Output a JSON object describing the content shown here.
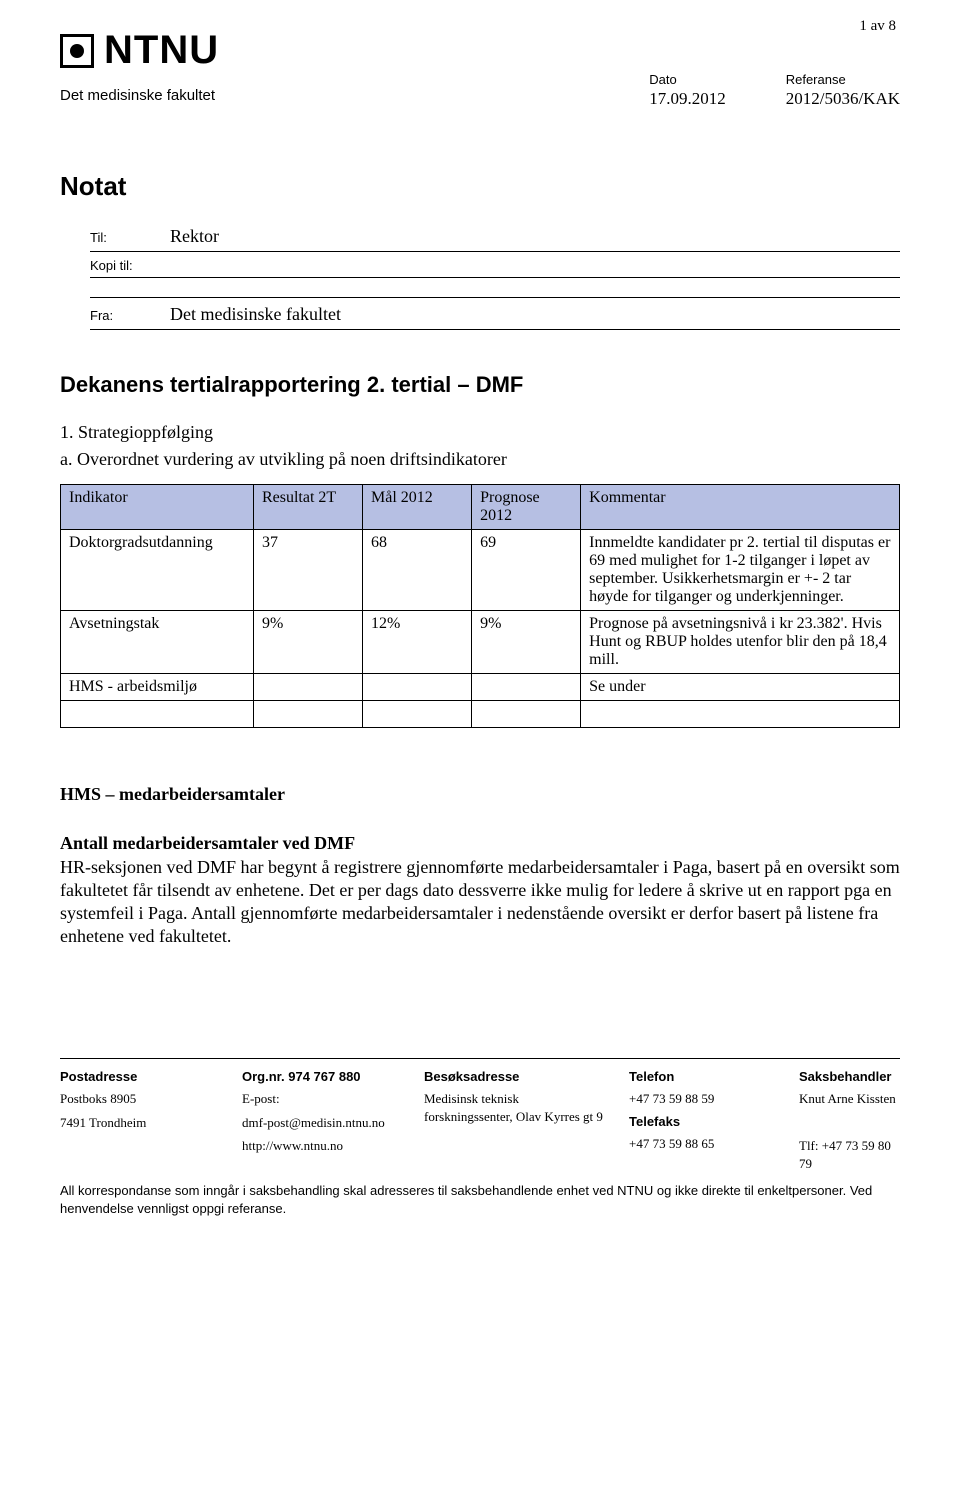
{
  "page_number": "1 av 8",
  "logo_text": "NTNU",
  "faculty": "Det medisinske fakultet",
  "date_block": {
    "label": "Dato",
    "value": "17.09.2012"
  },
  "ref_block": {
    "label": "Referanse",
    "value": "2012/5036/KAK"
  },
  "notat": "Notat",
  "meta": {
    "til_label": "Til:",
    "til_value": "Rektor",
    "kopi_label": "Kopi til:",
    "fra_label": "Fra:",
    "fra_value": "Det medisinske fakultet"
  },
  "doc_title": "Dekanens tertialrapportering 2. tertial – DMF",
  "section1_num": "1. Strategioppfølging",
  "section1_sub": "a. Overordnet vurdering av utvikling på noen driftsindikatorer",
  "table": {
    "header_bg": "#b6bfe3",
    "columns": [
      "Indikator",
      "Resultat 2T",
      "Mål 2012",
      "Prognose 2012",
      "Kommentar"
    ],
    "col_widths": [
      "23%",
      "13%",
      "13%",
      "13%",
      "38%"
    ],
    "rows": [
      {
        "cells": [
          "Doktorgradsutdanning",
          "37",
          "68",
          "69",
          "Innmeldte kandidater pr 2. tertial til disputas er 69 med mulighet for 1-2 tilganger i løpet av september. Usikkerhetsmargin er +- 2 tar høyde for tilganger og underkjenninger."
        ]
      },
      {
        "cells": [
          "Avsetningstak",
          "9%",
          "12%",
          "9%",
          "Prognose på avsetningsnivå i kr 23.382'. Hvis Hunt og RBUP holdes utenfor blir den på 18,4 mill."
        ]
      },
      {
        "cells": [
          "HMS - arbeidsmiljø",
          "",
          "",
          "",
          "Se under"
        ]
      },
      {
        "cells": [
          "",
          "",
          "",
          "",
          ""
        ]
      }
    ]
  },
  "hms_heading": "HMS – medarbeidersamtaler",
  "antall_heading": "Antall medarbeidersamtaler ved DMF",
  "antall_body": "HR-seksjonen ved DMF har begynt å registrere gjennomførte medarbeidersamtaler i Paga, basert på en oversikt som fakultetet får tilsendt av enhetene. Det er per dags dato dessverre ikke mulig for ledere å skrive ut en rapport pga en systemfeil i Paga. Antall gjennomførte medarbeidersamtaler i nedenstående oversikt er derfor basert på listene fra enhetene ved fakultetet.",
  "footer": {
    "cols": [
      {
        "head": "Postadresse",
        "lines": [
          "Postboks 8905",
          "7491 Trondheim"
        ]
      },
      {
        "head": "Org.nr. 974 767 880",
        "lines": [
          "E-post:",
          "dmf-post@medisin.ntnu.no",
          "http://www.ntnu.no"
        ]
      },
      {
        "head": "Besøksadresse",
        "lines": [
          "Medisinsk teknisk forskningssenter, Olav Kyrres gt 9"
        ]
      },
      {
        "head": "Telefon",
        "lines": [
          "+47 73 59 88 59"
        ],
        "head2": "Telefaks",
        "lines2": [
          "+47 73 59 88 65"
        ]
      },
      {
        "head": "Saksbehandler",
        "lines": [
          "Knut Arne Kissten",
          "",
          "Tlf: +47 73 59 80 79"
        ]
      }
    ],
    "note": "All korrespondanse som inngår i saksbehandling skal adresseres til saksbehandlende enhet ved NTNU og ikke direkte til enkeltpersoner. Ved henvendelse vennligst oppgi referanse."
  }
}
